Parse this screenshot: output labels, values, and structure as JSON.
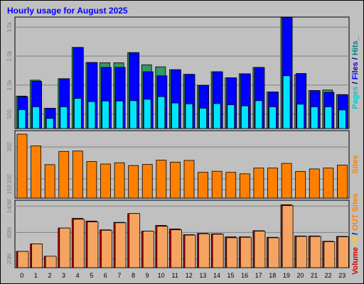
{
  "chart_data": {
    "type": "bar",
    "title": "Hourly usage for August 2025",
    "categories": [
      "0",
      "1",
      "2",
      "3",
      "4",
      "5",
      "6",
      "7",
      "8",
      "9",
      "10",
      "11",
      "12",
      "13",
      "14",
      "15",
      "16",
      "17",
      "18",
      "19",
      "20",
      "21",
      "22",
      "23"
    ],
    "panels": [
      {
        "id": "hits",
        "ticks": [
          "3.5k",
          "2.5k",
          "1.5k",
          "500"
        ],
        "tick_values": [
          3500,
          2500,
          1500,
          500
        ],
        "ylim": [
          0,
          3800
        ],
        "side_labels": [
          {
            "text": "Pages",
            "color": "#00cccc"
          },
          {
            "text": " / ",
            "color": "#000080"
          },
          {
            "text": "Files",
            "color": "#0000ff"
          },
          {
            "text": " / ",
            "color": "#000080"
          },
          {
            "text": "Hits",
            "color": "#008080"
          },
          {
            "text": "_",
            "color": "#008080"
          }
        ],
        "series": [
          {
            "name": "Hits",
            "color": "#339966",
            "values": [
              1120,
              1670,
              700,
              1720,
              2800,
              2280,
              2270,
              2270,
              2620,
              2200,
              2130,
              2030,
              1870,
              1490,
              1960,
              1750,
              1890,
              2110,
              1260,
              3840,
              1860,
              1310,
              1330,
              1170
            ]
          },
          {
            "name": "Files",
            "color": "#0000ff",
            "values": [
              1100,
              1630,
              700,
              1720,
              2800,
              2280,
              2110,
              2110,
              2620,
              1960,
              1820,
              2030,
              1870,
              1490,
              1960,
              1750,
              1890,
              2110,
              1260,
              3840,
              1900,
              1310,
              1250,
              1170
            ]
          },
          {
            "name": "Pages",
            "color": "#00e5ff",
            "values": [
              650,
              750,
              350,
              750,
              1040,
              930,
              950,
              950,
              960,
              1010,
              1100,
              880,
              850,
              700,
              860,
              820,
              780,
              960,
              750,
              1820,
              840,
              750,
              750,
              640
            ]
          }
        ]
      },
      {
        "id": "sites",
        "ticks": [
          "350",
          "200",
          "150"
        ],
        "tick_values": [
          350,
          200,
          150
        ],
        "ylim": [
          110,
          420
        ],
        "side_labels": [
          {
            "text": "Sites",
            "color": "#ff8000"
          }
        ],
        "series": [
          {
            "name": "Sites",
            "color": "#ff8000",
            "values": [
              410,
              355,
              267,
              329,
              331,
              282,
              270,
              276,
              263,
              268,
              288,
              279,
              287,
              231,
              236,
              231,
              224,
              251,
              251,
              273,
              235,
              247,
              251,
              265
            ]
          }
        ]
      },
      {
        "id": "volume",
        "ticks": [
          "140M",
          "80M",
          "20M"
        ],
        "tick_values": [
          140,
          80,
          20
        ],
        "ylim": [
          0,
          150
        ],
        "side_labels": [
          {
            "text": "Volume",
            "color": "#cc0000"
          },
          {
            "text": " ",
            "color": "#000000"
          },
          {
            "text": "IN",
            "color": "#ffcc00"
          },
          {
            "text": " / ",
            "color": "#000080"
          },
          {
            "text": "OUT",
            "color": "#ff8000"
          },
          {
            "text": " ",
            "color": "#000000"
          },
          {
            "text": "Sites",
            "color": "#ff8000"
          }
        ],
        "series": [
          {
            "name": "IN",
            "color": "#cc0000",
            "values": [
              37,
              54,
              26,
              90,
              112,
              106,
              86,
              103,
              123,
              83,
              96,
              88,
              75,
              78,
              77,
              70,
              70,
              84,
              69,
              143,
              72,
              72,
              60,
              71
            ]
          },
          {
            "name": "OUT",
            "color": "#f4a460",
            "values": [
              37,
              54,
              26,
              90,
              110,
              104,
              85,
              102,
              123,
              83,
              94,
              86,
              74,
              77,
              76,
              68,
              69,
              83,
              68,
              141,
              71,
              71,
              59,
              70
            ]
          }
        ]
      }
    ],
    "grid": true
  }
}
